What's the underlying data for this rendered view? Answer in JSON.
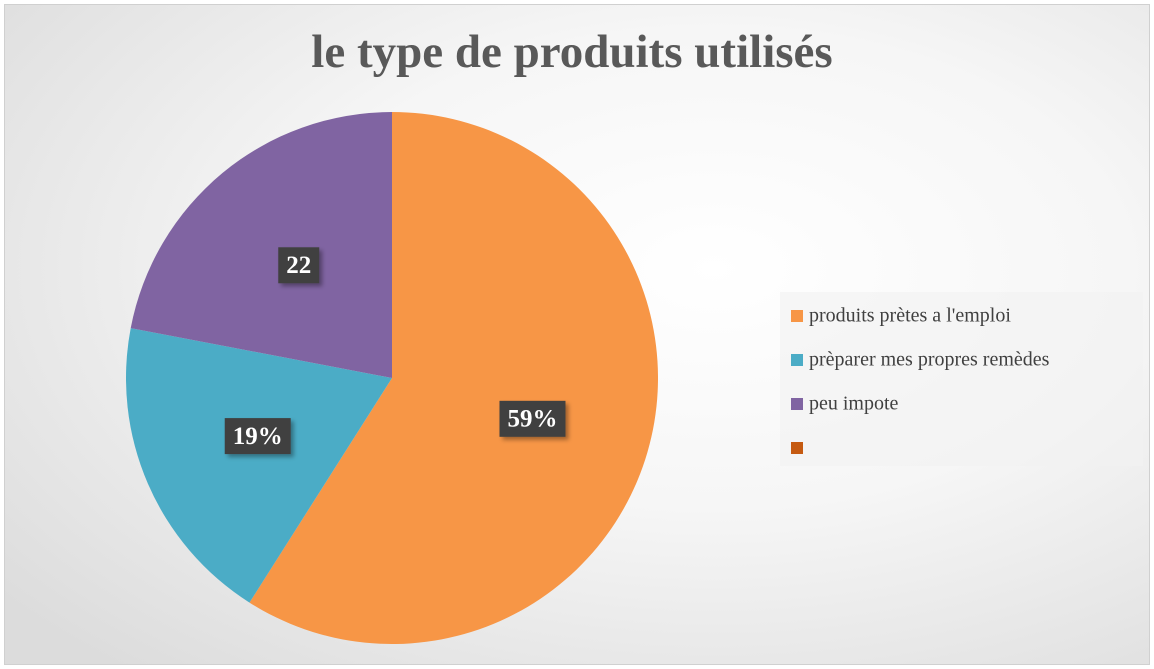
{
  "chart_data": {
    "type": "pie",
    "title": "le type de produits utilisés",
    "categories": [
      "produits prètes a l'emploi",
      "prèparer mes propres remèdes",
      "peu impote",
      null
    ],
    "values": [
      59,
      19,
      22,
      0
    ],
    "value_labels": [
      "59%",
      "19%",
      "22",
      null
    ],
    "colors": [
      "#f79646",
      "#4bacc6",
      "#8064a2",
      "#c55a11"
    ],
    "legend": "right"
  }
}
